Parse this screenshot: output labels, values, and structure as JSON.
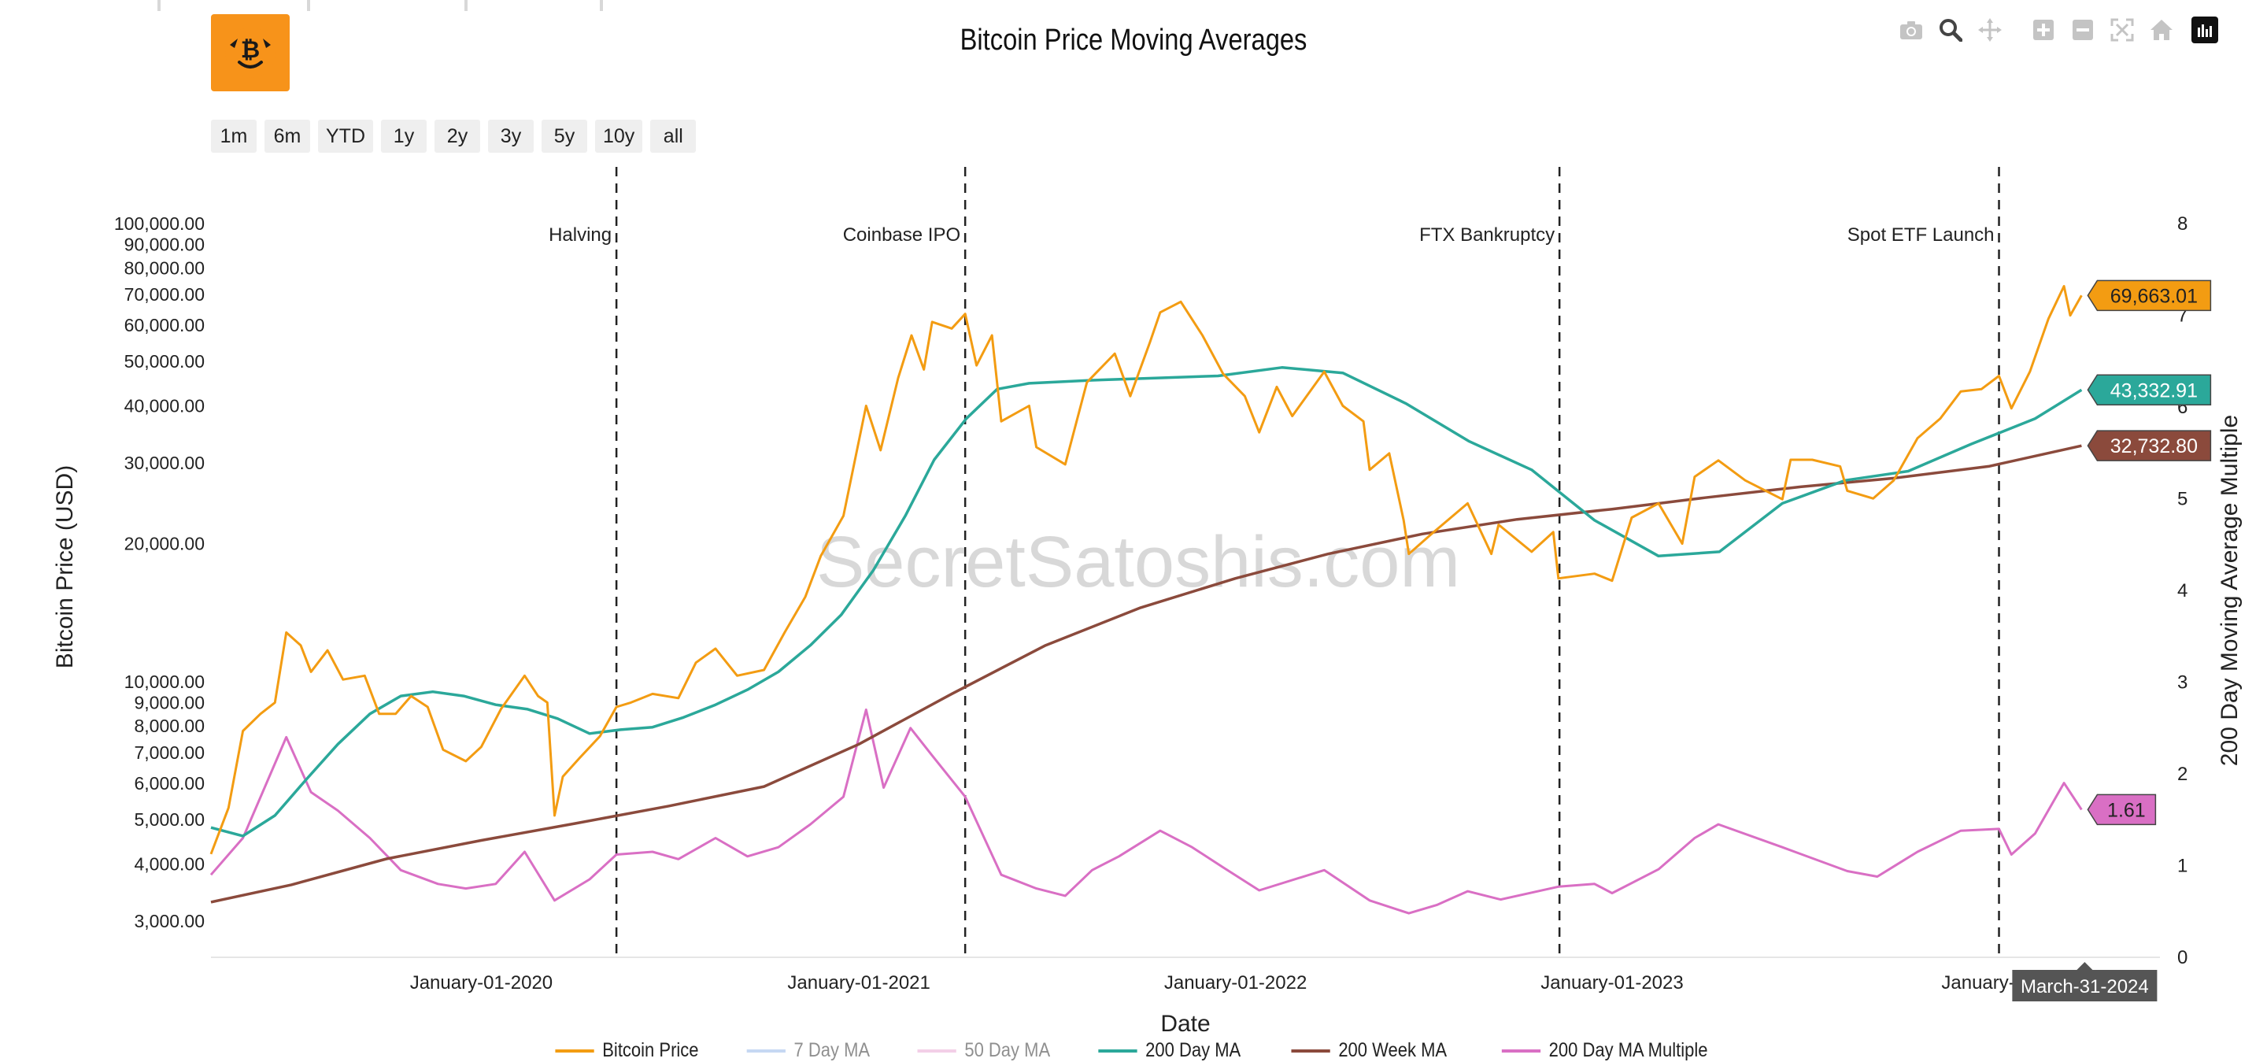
{
  "title": "Bitcoin Price Moving Averages",
  "range_buttons": [
    "1m",
    "6m",
    "YTD",
    "1y",
    "2y",
    "3y",
    "5y",
    "10y",
    "all"
  ],
  "modebar": [
    "camera-icon",
    "zoom-icon",
    "pan-icon",
    "zoom-in-icon",
    "zoom-out-icon",
    "autoscale-icon",
    "reset-axes-icon",
    "plotly-logo-icon"
  ],
  "colors": {
    "price": "#f39c12",
    "ma7": "#8fb3e8",
    "ma50": "#e8a0d0",
    "ma200d": "#2ba89a",
    "ma200w": "#8b4a3c",
    "multiple": "#d96fc4"
  },
  "chart_data": {
    "type": "line",
    "title": "Bitcoin Price Moving Averages",
    "xlabel": "Date",
    "ylabel": "Bitcoin Price (USD)",
    "y2label": "200 Day Moving Average Multiple",
    "x_range": [
      "2019-04-14",
      "2024-06-15"
    ],
    "y_scale": "log",
    "y_range": [
      2500,
      100000
    ],
    "y_ticks": [
      3000,
      4000,
      5000,
      6000,
      7000,
      8000,
      9000,
      10000,
      20000,
      30000,
      40000,
      50000,
      60000,
      70000,
      80000,
      90000,
      100000
    ],
    "y_tick_labels": [
      "3,000.00",
      "4,000.00",
      "5,000.00",
      "6,000.00",
      "7,000.00",
      "8,000.00",
      "9,000.00",
      "10,000.00",
      "20,000.00",
      "30,000.00",
      "40,000.00",
      "50,000.00",
      "60,000.00",
      "70,000.00",
      "80,000.00",
      "90,000.00",
      "100,000.00"
    ],
    "y2_range": [
      0,
      8
    ],
    "y2_ticks": [
      0,
      1,
      2,
      3,
      4,
      5,
      6,
      7,
      8
    ],
    "x_ticks": [
      "2020-01-01",
      "2021-01-01",
      "2022-01-01",
      "2023-01-01",
      "2024-01-01"
    ],
    "x_tick_labels": [
      "January-01-2020",
      "January-01-2021",
      "January-01-2022",
      "January-01-2023",
      "January-01"
    ],
    "hover_label": "March-31-2024",
    "events": [
      {
        "date": "2020-05-11",
        "label": "Halving"
      },
      {
        "date": "2021-04-14",
        "label": "Coinbase IPO"
      },
      {
        "date": "2022-11-11",
        "label": "FTX Bankruptcy"
      },
      {
        "date": "2024-01-11",
        "label": "Spot ETF Launch"
      }
    ],
    "legend": [
      {
        "name": "Bitcoin Price",
        "key": "price"
      },
      {
        "name": "7 Day MA",
        "key": "ma7",
        "faded": true
      },
      {
        "name": "50 Day MA",
        "key": "ma50",
        "faded": true
      },
      {
        "name": "200 Day MA",
        "key": "ma200d"
      },
      {
        "name": "200 Week MA",
        "key": "ma200w"
      },
      {
        "name": "200 Day MA Multiple",
        "key": "multiple"
      }
    ],
    "end_labels": [
      {
        "series": "price",
        "text": "69,663.01"
      },
      {
        "series": "ma200d",
        "text": "43,332.91"
      },
      {
        "series": "ma200w",
        "text": "32,732.80"
      },
      {
        "series": "multiple",
        "text": "1.61"
      }
    ],
    "series": [
      {
        "name": "Bitcoin Price",
        "key": "price",
        "axis": "y",
        "points": [
          [
            "2019-04-14",
            4200
          ],
          [
            "2019-05-01",
            5300
          ],
          [
            "2019-05-15",
            7800
          ],
          [
            "2019-06-01",
            8500
          ],
          [
            "2019-06-15",
            9000
          ],
          [
            "2019-06-26",
            12800
          ],
          [
            "2019-07-10",
            12000
          ],
          [
            "2019-07-20",
            10500
          ],
          [
            "2019-08-05",
            11700
          ],
          [
            "2019-08-20",
            10100
          ],
          [
            "2019-09-10",
            10300
          ],
          [
            "2019-09-24",
            8500
          ],
          [
            "2019-10-10",
            8500
          ],
          [
            "2019-10-25",
            9300
          ],
          [
            "2019-11-10",
            8800
          ],
          [
            "2019-11-25",
            7100
          ],
          [
            "2019-12-17",
            6700
          ],
          [
            "2020-01-01",
            7200
          ],
          [
            "2020-01-20",
            8700
          ],
          [
            "2020-02-12",
            10300
          ],
          [
            "2020-02-25",
            9300
          ],
          [
            "2020-03-05",
            9000
          ],
          [
            "2020-03-12",
            5100
          ],
          [
            "2020-03-20",
            6200
          ],
          [
            "2020-04-05",
            6800
          ],
          [
            "2020-04-25",
            7600
          ],
          [
            "2020-05-11",
            8800
          ],
          [
            "2020-05-25",
            9000
          ],
          [
            "2020-06-15",
            9400
          ],
          [
            "2020-07-10",
            9200
          ],
          [
            "2020-07-27",
            11000
          ],
          [
            "2020-08-15",
            11800
          ],
          [
            "2020-09-05",
            10300
          ],
          [
            "2020-10-01",
            10600
          ],
          [
            "2020-10-21",
            12800
          ],
          [
            "2020-11-10",
            15300
          ],
          [
            "2020-11-25",
            18800
          ],
          [
            "2020-12-17",
            23000
          ],
          [
            "2021-01-08",
            40000
          ],
          [
            "2021-01-22",
            32000
          ],
          [
            "2021-02-08",
            46000
          ],
          [
            "2021-02-21",
            57000
          ],
          [
            "2021-03-05",
            48000
          ],
          [
            "2021-03-13",
            61000
          ],
          [
            "2021-04-01",
            59000
          ],
          [
            "2021-04-14",
            63500
          ],
          [
            "2021-04-25",
            49000
          ],
          [
            "2021-05-10",
            57000
          ],
          [
            "2021-05-19",
            37000
          ],
          [
            "2021-06-15",
            40000
          ],
          [
            "2021-06-22",
            32500
          ],
          [
            "2021-07-20",
            29800
          ],
          [
            "2021-08-10",
            45000
          ],
          [
            "2021-09-06",
            52000
          ],
          [
            "2021-09-21",
            42000
          ],
          [
            "2021-10-10",
            55000
          ],
          [
            "2021-10-20",
            64000
          ],
          [
            "2021-11-09",
            67500
          ],
          [
            "2021-11-30",
            57000
          ],
          [
            "2021-12-20",
            47000
          ],
          [
            "2022-01-10",
            42000
          ],
          [
            "2022-01-24",
            35000
          ],
          [
            "2022-02-10",
            44000
          ],
          [
            "2022-02-25",
            38000
          ],
          [
            "2022-03-28",
            47500
          ],
          [
            "2022-04-15",
            40000
          ],
          [
            "2022-05-05",
            37000
          ],
          [
            "2022-05-11",
            29000
          ],
          [
            "2022-05-30",
            31500
          ],
          [
            "2022-06-13",
            22500
          ],
          [
            "2022-06-18",
            19000
          ],
          [
            "2022-07-10",
            21000
          ],
          [
            "2022-08-14",
            24500
          ],
          [
            "2022-09-06",
            19000
          ],
          [
            "2022-09-13",
            22000
          ],
          [
            "2022-10-15",
            19200
          ],
          [
            "2022-11-05",
            21200
          ],
          [
            "2022-11-10",
            16800
          ],
          [
            "2022-12-15",
            17200
          ],
          [
            "2023-01-01",
            16600
          ],
          [
            "2023-01-20",
            22800
          ],
          [
            "2023-02-15",
            24500
          ],
          [
            "2023-03-10",
            20000
          ],
          [
            "2023-03-22",
            28000
          ],
          [
            "2023-04-14",
            30400
          ],
          [
            "2023-05-10",
            27500
          ],
          [
            "2023-06-15",
            25000
          ],
          [
            "2023-06-23",
            30500
          ],
          [
            "2023-07-14",
            30500
          ],
          [
            "2023-08-10",
            29500
          ],
          [
            "2023-08-17",
            26100
          ],
          [
            "2023-09-11",
            25100
          ],
          [
            "2023-10-01",
            27500
          ],
          [
            "2023-10-24",
            34000
          ],
          [
            "2023-11-15",
            37500
          ],
          [
            "2023-12-05",
            43000
          ],
          [
            "2023-12-25",
            43500
          ],
          [
            "2024-01-11",
            46500
          ],
          [
            "2024-01-23",
            39500
          ],
          [
            "2024-02-10",
            47500
          ],
          [
            "2024-02-28",
            62000
          ],
          [
            "2024-03-14",
            73000
          ],
          [
            "2024-03-20",
            63000
          ],
          [
            "2024-03-31",
            69663
          ]
        ]
      },
      {
        "name": "200 Day MA",
        "key": "ma200d",
        "axis": "y",
        "points": [
          [
            "2019-04-14",
            4800
          ],
          [
            "2019-05-15",
            4600
          ],
          [
            "2019-06-15",
            5100
          ],
          [
            "2019-07-15",
            6100
          ],
          [
            "2019-08-15",
            7300
          ],
          [
            "2019-09-15",
            8500
          ],
          [
            "2019-10-15",
            9300
          ],
          [
            "2019-11-15",
            9500
          ],
          [
            "2019-12-15",
            9300
          ],
          [
            "2020-01-15",
            8900
          ],
          [
            "2020-02-15",
            8700
          ],
          [
            "2020-03-15",
            8300
          ],
          [
            "2020-04-15",
            7700
          ],
          [
            "2020-05-15",
            7850
          ],
          [
            "2020-06-15",
            7950
          ],
          [
            "2020-07-15",
            8350
          ],
          [
            "2020-08-15",
            8900
          ],
          [
            "2020-09-15",
            9600
          ],
          [
            "2020-10-15",
            10500
          ],
          [
            "2020-11-15",
            12000
          ],
          [
            "2020-12-15",
            14000
          ],
          [
            "2021-01-15",
            17500
          ],
          [
            "2021-02-15",
            23000
          ],
          [
            "2021-03-15",
            30500
          ],
          [
            "2021-04-15",
            37500
          ],
          [
            "2021-05-15",
            43500
          ],
          [
            "2021-06-15",
            44800
          ],
          [
            "2021-08-15",
            45500
          ],
          [
            "2021-10-15",
            46000
          ],
          [
            "2021-12-15",
            46500
          ],
          [
            "2022-02-15",
            48500
          ],
          [
            "2022-04-15",
            47200
          ],
          [
            "2022-06-15",
            40500
          ],
          [
            "2022-08-15",
            33500
          ],
          [
            "2022-10-15",
            29000
          ],
          [
            "2022-12-15",
            22500
          ],
          [
            "2023-02-15",
            18800
          ],
          [
            "2023-04-15",
            19200
          ],
          [
            "2023-06-15",
            24500
          ],
          [
            "2023-08-15",
            27500
          ],
          [
            "2023-10-15",
            28800
          ],
          [
            "2023-12-15",
            33000
          ],
          [
            "2024-02-15",
            37500
          ],
          [
            "2024-03-31",
            43333
          ]
        ]
      },
      {
        "name": "200 Week MA",
        "key": "ma200w",
        "axis": "y",
        "points": [
          [
            "2019-04-14",
            3300
          ],
          [
            "2019-07-01",
            3600
          ],
          [
            "2019-10-01",
            4100
          ],
          [
            "2020-01-01",
            4500
          ],
          [
            "2020-04-01",
            4900
          ],
          [
            "2020-07-01",
            5350
          ],
          [
            "2020-10-01",
            5900
          ],
          [
            "2021-01-01",
            7300
          ],
          [
            "2021-04-01",
            9400
          ],
          [
            "2021-07-01",
            12000
          ],
          [
            "2021-10-01",
            14500
          ],
          [
            "2022-01-01",
            16800
          ],
          [
            "2022-04-01",
            19000
          ],
          [
            "2022-07-01",
            21000
          ],
          [
            "2022-10-01",
            22600
          ],
          [
            "2023-01-01",
            23800
          ],
          [
            "2023-04-01",
            25200
          ],
          [
            "2023-07-01",
            26600
          ],
          [
            "2023-10-01",
            27800
          ],
          [
            "2024-01-01",
            29500
          ],
          [
            "2024-03-31",
            32733
          ]
        ]
      },
      {
        "name": "200 Day MA Multiple",
        "key": "multiple",
        "axis": "y2",
        "points": [
          [
            "2019-04-14",
            0.9
          ],
          [
            "2019-05-15",
            1.3
          ],
          [
            "2019-06-26",
            2.4
          ],
          [
            "2019-07-20",
            1.8
          ],
          [
            "2019-08-15",
            1.6
          ],
          [
            "2019-09-15",
            1.3
          ],
          [
            "2019-10-15",
            0.95
          ],
          [
            "2019-11-20",
            0.8
          ],
          [
            "2019-12-17",
            0.75
          ],
          [
            "2020-01-15",
            0.8
          ],
          [
            "2020-02-12",
            1.15
          ],
          [
            "2020-03-12",
            0.62
          ],
          [
            "2020-04-15",
            0.85
          ],
          [
            "2020-05-11",
            1.12
          ],
          [
            "2020-06-15",
            1.15
          ],
          [
            "2020-07-10",
            1.07
          ],
          [
            "2020-08-15",
            1.3
          ],
          [
            "2020-09-15",
            1.1
          ],
          [
            "2020-10-15",
            1.2
          ],
          [
            "2020-11-15",
            1.45
          ],
          [
            "2020-12-17",
            1.75
          ],
          [
            "2021-01-08",
            2.7
          ],
          [
            "2021-01-25",
            1.85
          ],
          [
            "2021-02-20",
            2.5
          ],
          [
            "2021-03-13",
            2.2
          ],
          [
            "2021-04-14",
            1.75
          ],
          [
            "2021-05-19",
            0.9
          ],
          [
            "2021-06-22",
            0.75
          ],
          [
            "2021-07-20",
            0.67
          ],
          [
            "2021-08-15",
            0.95
          ],
          [
            "2021-09-10",
            1.1
          ],
          [
            "2021-10-20",
            1.38
          ],
          [
            "2021-11-20",
            1.2
          ],
          [
            "2021-12-20",
            0.98
          ],
          [
            "2022-01-24",
            0.73
          ],
          [
            "2022-03-28",
            0.95
          ],
          [
            "2022-05-11",
            0.62
          ],
          [
            "2022-06-18",
            0.48
          ],
          [
            "2022-07-15",
            0.57
          ],
          [
            "2022-08-14",
            0.72
          ],
          [
            "2022-09-15",
            0.63
          ],
          [
            "2022-11-10",
            0.77
          ],
          [
            "2022-12-15",
            0.8
          ],
          [
            "2023-01-01",
            0.7
          ],
          [
            "2023-02-15",
            0.96
          ],
          [
            "2023-03-22",
            1.3
          ],
          [
            "2023-04-14",
            1.45
          ],
          [
            "2023-06-15",
            1.2
          ],
          [
            "2023-08-17",
            0.94
          ],
          [
            "2023-09-15",
            0.88
          ],
          [
            "2023-10-24",
            1.15
          ],
          [
            "2023-12-05",
            1.38
          ],
          [
            "2024-01-11",
            1.4
          ],
          [
            "2024-01-23",
            1.12
          ],
          [
            "2024-02-15",
            1.35
          ],
          [
            "2024-03-14",
            1.9
          ],
          [
            "2024-03-31",
            1.61
          ]
        ]
      }
    ]
  }
}
